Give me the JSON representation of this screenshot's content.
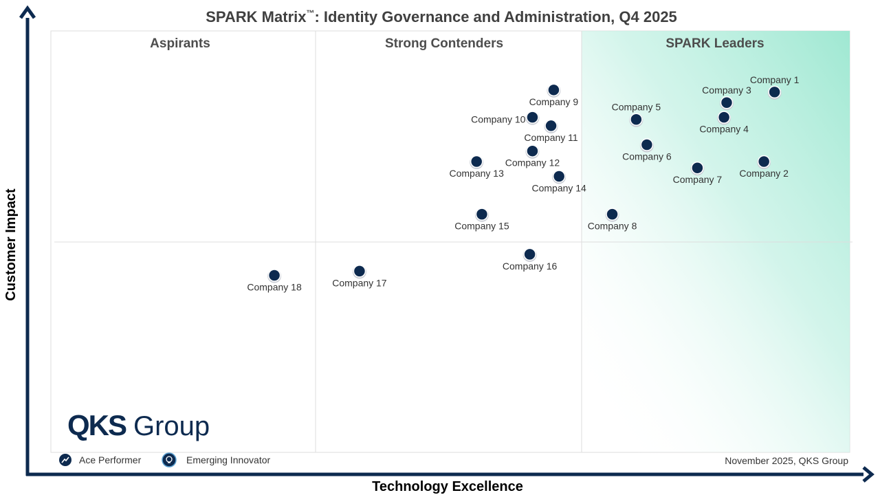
{
  "title": "SPARK Matrix™: Identity Governance and Administration, Q4 2025",
  "title_main": "SPARK Matrix",
  "title_tm": "™",
  "title_rest": ": Identity Governance and Administration, Q4 2025",
  "quadrants": {
    "aspirants": "Aspirants",
    "strong_contenders": "Strong Contenders",
    "leaders": "SPARK Leaders"
  },
  "x_axis_label": "Technology Excellence",
  "y_axis_label": "Customer Impact",
  "legend": {
    "ace_performer": "Ace Performer",
    "emerging_innovator": "Emerging Innovator"
  },
  "footer_note": "November 2025, QKS Group",
  "logo": {
    "main": "QKS",
    "sub": "Group"
  },
  "colors": {
    "axis": "#0d2a4f",
    "point": "#0d2a4f",
    "leader_gradient": "#9fe8d2",
    "text": "#404040"
  },
  "chart_data": {
    "type": "scatter",
    "title": "SPARK Matrix™: Identity Governance and Administration, Q4 2025",
    "xlabel": "Technology Excellence",
    "ylabel": "Customer Impact",
    "xlim": [
      0,
      3
    ],
    "ylim": [
      0,
      2
    ],
    "grid": false,
    "legend_position": "bottom-left",
    "points": [
      {
        "label": "Company 1",
        "x": 2.72,
        "y": 1.71,
        "label_pos": "above"
      },
      {
        "label": "Company 2",
        "x": 2.68,
        "y": 1.38,
        "label_pos": "below"
      },
      {
        "label": "Company 3",
        "x": 2.54,
        "y": 1.66,
        "label_pos": "above"
      },
      {
        "label": "Company 4",
        "x": 2.53,
        "y": 1.59,
        "label_pos": "below"
      },
      {
        "label": "Company 5",
        "x": 2.2,
        "y": 1.58,
        "label_pos": "above"
      },
      {
        "label": "Company 6",
        "x": 2.24,
        "y": 1.46,
        "label_pos": "below"
      },
      {
        "label": "Company 7",
        "x": 2.43,
        "y": 1.35,
        "label_pos": "below"
      },
      {
        "label": "Company 8",
        "x": 2.11,
        "y": 1.13,
        "label_pos": "below"
      },
      {
        "label": "Company 9",
        "x": 1.89,
        "y": 1.72,
        "label_pos": "below"
      },
      {
        "label": "Company 10",
        "x": 1.81,
        "y": 1.59,
        "label_pos": "left"
      },
      {
        "label": "Company 11",
        "x": 1.88,
        "y": 1.55,
        "label_pos": "below"
      },
      {
        "label": "Company 12",
        "x": 1.81,
        "y": 1.43,
        "label_pos": "below"
      },
      {
        "label": "Company 13",
        "x": 1.6,
        "y": 1.38,
        "label_pos": "below"
      },
      {
        "label": "Company 14",
        "x": 1.91,
        "y": 1.31,
        "label_pos": "below"
      },
      {
        "label": "Company 15",
        "x": 1.62,
        "y": 1.13,
        "label_pos": "below"
      },
      {
        "label": "Company 16",
        "x": 1.8,
        "y": 0.94,
        "label_pos": "below"
      },
      {
        "label": "Company 17",
        "x": 1.16,
        "y": 0.86,
        "label_pos": "below"
      },
      {
        "label": "Company 18",
        "x": 0.84,
        "y": 0.84,
        "label_pos": "below"
      }
    ]
  }
}
